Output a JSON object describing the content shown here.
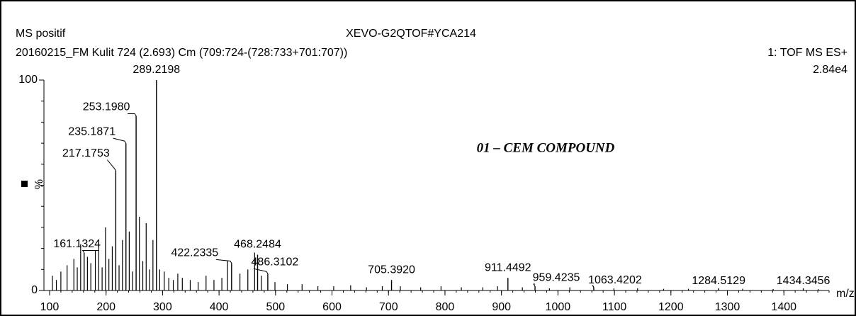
{
  "chart_data": {
    "type": "spectrum",
    "title": "MS positif",
    "instrument": "XEVO-G2QTOF#YCA214",
    "subtitle": "20160215_FM Kulit 724 (2.693) Cm (709:724-(728:733+701:707))",
    "scan_mode": "1: TOF MS ES+",
    "max_intensity": "2.84e4",
    "annotation": "01 – CEM COMPOUND",
    "y_label": "%",
    "x_label": "m/z",
    "color": "#000000",
    "xlim": [
      90,
      1480
    ],
    "ylim": [
      0,
      100
    ],
    "xticks": [
      100,
      200,
      300,
      400,
      500,
      600,
      700,
      800,
      900,
      1000,
      1100,
      1200,
      1300,
      1400
    ],
    "yticks": [
      0,
      100
    ],
    "labeled_peaks": {
      "x": [
        289.2198,
        253.198,
        235.1871,
        217.1753,
        161.1324,
        422.2335,
        468.2484,
        486.3102,
        705.392,
        911.4492,
        959.4235,
        1063.4202,
        1284.5129,
        1434.3456
      ],
      "labels": [
        "289.2198",
        "253.1980",
        "235.1871",
        "217.1753",
        "161.1324",
        "422.2335",
        "468.2484",
        "486.3102",
        "705.3920",
        "911.4492",
        "959.4235",
        "1063.4202",
        "1284.5129",
        "1434.3456"
      ],
      "values": [
        100,
        83,
        70,
        57,
        18,
        13,
        17,
        8,
        5,
        6,
        2,
        1.5,
        1,
        1
      ]
    },
    "minor_peaks": {
      "x": [
        105,
        112,
        120,
        131,
        143,
        149,
        155,
        167,
        173,
        181,
        187,
        193,
        199,
        205,
        211,
        223,
        229,
        241,
        247,
        259,
        265,
        271,
        277,
        283,
        295,
        303,
        311,
        319,
        327,
        335,
        349,
        363,
        377,
        391,
        405,
        415,
        437,
        451,
        463,
        475,
        499,
        521,
        547,
        575,
        603,
        633,
        661,
        689,
        721,
        757,
        793,
        829,
        867,
        893,
        937,
        985,
        1021,
        1099,
        1141,
        1187,
        1231,
        1327,
        1381,
        1461
      ],
      "values": [
        7,
        5,
        9,
        12,
        15,
        11,
        22,
        16,
        13,
        19,
        24,
        11,
        30,
        15,
        21,
        12,
        24,
        28,
        9,
        35,
        14,
        32,
        10,
        24,
        10,
        9,
        6,
        5,
        8,
        6,
        5,
        4,
        7,
        5,
        6,
        14,
        8,
        10,
        18,
        7,
        4,
        3,
        3,
        2,
        2,
        2.5,
        1.5,
        2,
        2,
        1.5,
        2,
        1.5,
        1.5,
        2,
        1.5,
        1,
        1.5,
        1,
        1,
        0.8,
        0.8,
        0.8,
        0.7,
        0.6
      ]
    }
  }
}
